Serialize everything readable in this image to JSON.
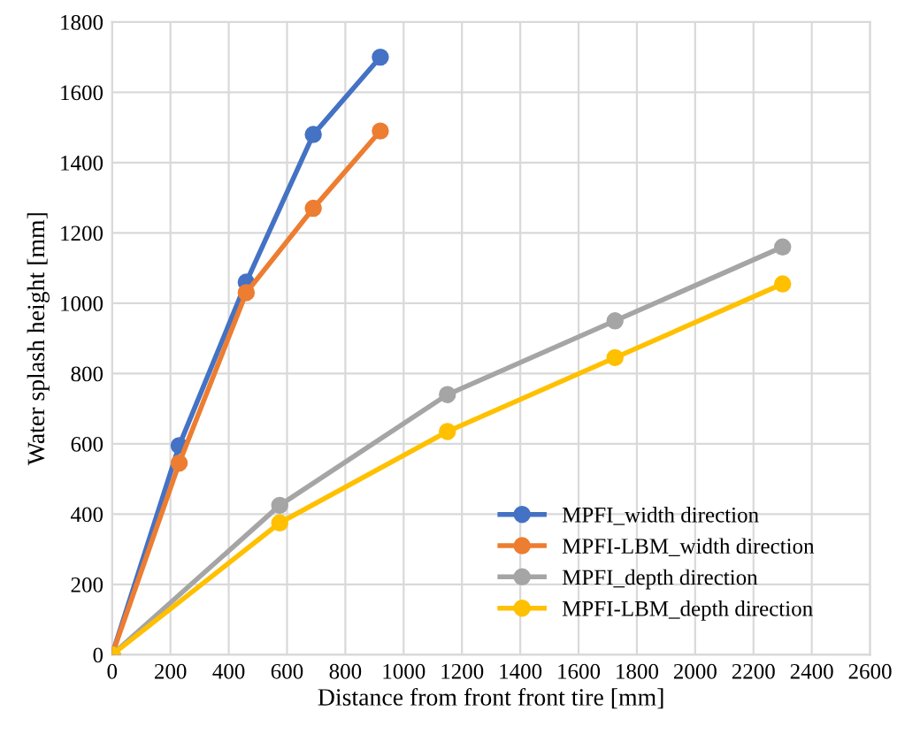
{
  "chart_data": {
    "type": "line",
    "xlabel": "Distance from front front tire [mm]",
    "ylabel": "Water splash height [mm]",
    "xlim": [
      0,
      2600
    ],
    "xticks": [
      0,
      200,
      400,
      600,
      800,
      1000,
      1200,
      1400,
      1600,
      1800,
      2000,
      2200,
      2400,
      2600
    ],
    "ylim": [
      0,
      1800
    ],
    "yticks": [
      0,
      200,
      400,
      600,
      800,
      1000,
      1200,
      1400,
      1600,
      1800
    ],
    "grid": true,
    "legend": "bottom right",
    "marker": "circle",
    "line_style": "solid",
    "series": [
      {
        "name": "MPFI_width direction",
        "color": "#4472c4",
        "x": [
          0,
          230,
          460,
          690,
          920
        ],
        "values": [
          0,
          595,
          1060,
          1480,
          1700
        ]
      },
      {
        "name": "MPFI-LBM_width direction",
        "color": "#ed7d31",
        "x": [
          0,
          230,
          460,
          690,
          920
        ],
        "values": [
          0,
          545,
          1030,
          1270,
          1490
        ]
      },
      {
        "name": "MPFI_depth direction",
        "color": "#a5a5a5",
        "x": [
          0,
          575,
          1150,
          1725,
          2300
        ],
        "values": [
          0,
          425,
          740,
          950,
          1160
        ]
      },
      {
        "name": "MPFI-LBM_depth direction",
        "color": "#ffc000",
        "x": [
          0,
          575,
          1150,
          1725,
          2300
        ],
        "values": [
          0,
          375,
          635,
          845,
          1055
        ]
      }
    ]
  }
}
